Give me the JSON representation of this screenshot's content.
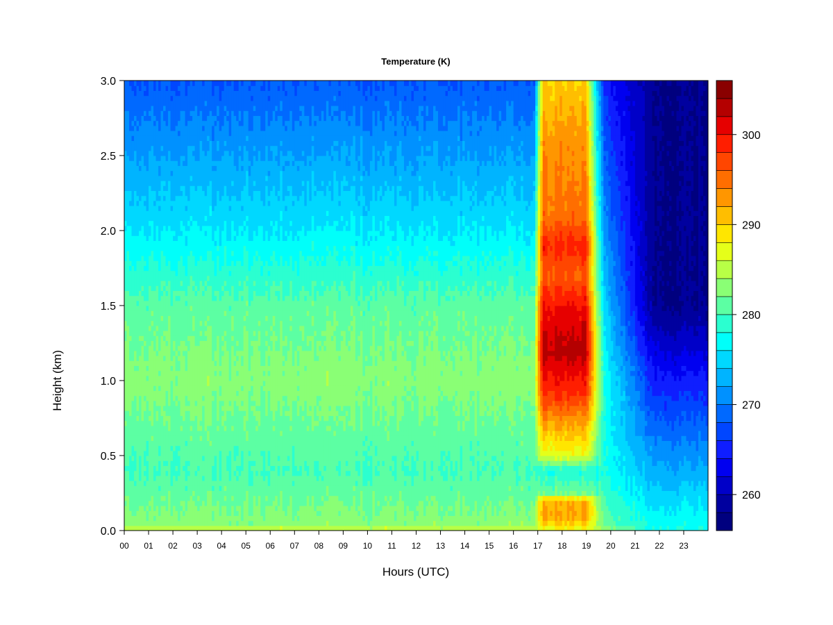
{
  "chart_data": {
    "type": "heatmap",
    "title": "Temperature (K)",
    "xlabel": "Hours (UTC)",
    "ylabel": "Height (km)",
    "xlim": [
      0,
      24
    ],
    "ylim": [
      0.0,
      3.0
    ],
    "x_ticks": [
      0,
      1,
      2,
      3,
      4,
      5,
      6,
      7,
      8,
      9,
      10,
      11,
      12,
      13,
      14,
      15,
      16,
      17,
      18,
      19,
      20,
      21,
      22,
      23
    ],
    "x_tick_labels": [
      "00",
      "01",
      "02",
      "03",
      "04",
      "05",
      "06",
      "07",
      "08",
      "09",
      "10",
      "11",
      "12",
      "13",
      "14",
      "15",
      "16",
      "17",
      "18",
      "19",
      "20",
      "21",
      "22",
      "23"
    ],
    "y_ticks": [
      0.0,
      0.5,
      1.0,
      1.5,
      2.0,
      2.5,
      3.0
    ],
    "y_tick_labels": [
      "0.0",
      "0.5",
      "1.0",
      "1.5",
      "2.0",
      "2.5",
      "3.0"
    ],
    "colorbar": {
      "range": [
        256,
        306
      ],
      "step": 2,
      "ticks": [
        260,
        270,
        280,
        290,
        300
      ],
      "tick_labels": [
        "260",
        "270",
        "280",
        "290",
        "300"
      ],
      "colors": [
        "#00007f",
        "#00009f",
        "#0000c8",
        "#0000f0",
        "#0f1eff",
        "#0046ff",
        "#0069ff",
        "#0091ff",
        "#00b4ff",
        "#00d8ff",
        "#00fffa",
        "#2bffd0",
        "#5cffa3",
        "#8aff75",
        "#b8ff46",
        "#e5ff19",
        "#ffe600",
        "#ffbe00",
        "#ff9600",
        "#ff6e00",
        "#ff4600",
        "#ff1e00",
        "#e60000",
        "#b40000",
        "#8a0000"
      ]
    },
    "field": {
      "background_profile": [
        {
          "z": 0.0,
          "t": 286
        },
        {
          "z": 0.05,
          "t": 283
        },
        {
          "z": 0.4,
          "t": 280
        },
        {
          "z": 1.0,
          "t": 283
        },
        {
          "z": 1.5,
          "t": 281
        },
        {
          "z": 2.0,
          "t": 276
        },
        {
          "z": 2.5,
          "t": 272
        },
        {
          "z": 3.0,
          "t": 268
        }
      ],
      "warm_column": {
        "x_start": 17.2,
        "x_end": 19.0,
        "profile": [
          {
            "z": 0.0,
            "t": 287
          },
          {
            "z": 0.08,
            "t": 292
          },
          {
            "z": 0.2,
            "t": 292
          },
          {
            "z": 0.25,
            "t": 282
          },
          {
            "z": 0.4,
            "t": 278
          },
          {
            "z": 0.5,
            "t": 287
          },
          {
            "z": 0.7,
            "t": 292
          },
          {
            "z": 0.9,
            "t": 298
          },
          {
            "z": 1.2,
            "t": 303
          },
          {
            "z": 1.5,
            "t": 300
          },
          {
            "z": 1.7,
            "t": 296
          },
          {
            "z": 1.9,
            "t": 299
          },
          {
            "z": 2.1,
            "t": 295
          },
          {
            "z": 2.6,
            "t": 293
          },
          {
            "z": 3.0,
            "t": 290
          }
        ]
      },
      "cold_region": {
        "x_start": 19.5,
        "x_end": 24.0,
        "min_t_top": 258,
        "min_t_surface": 278
      }
    }
  }
}
